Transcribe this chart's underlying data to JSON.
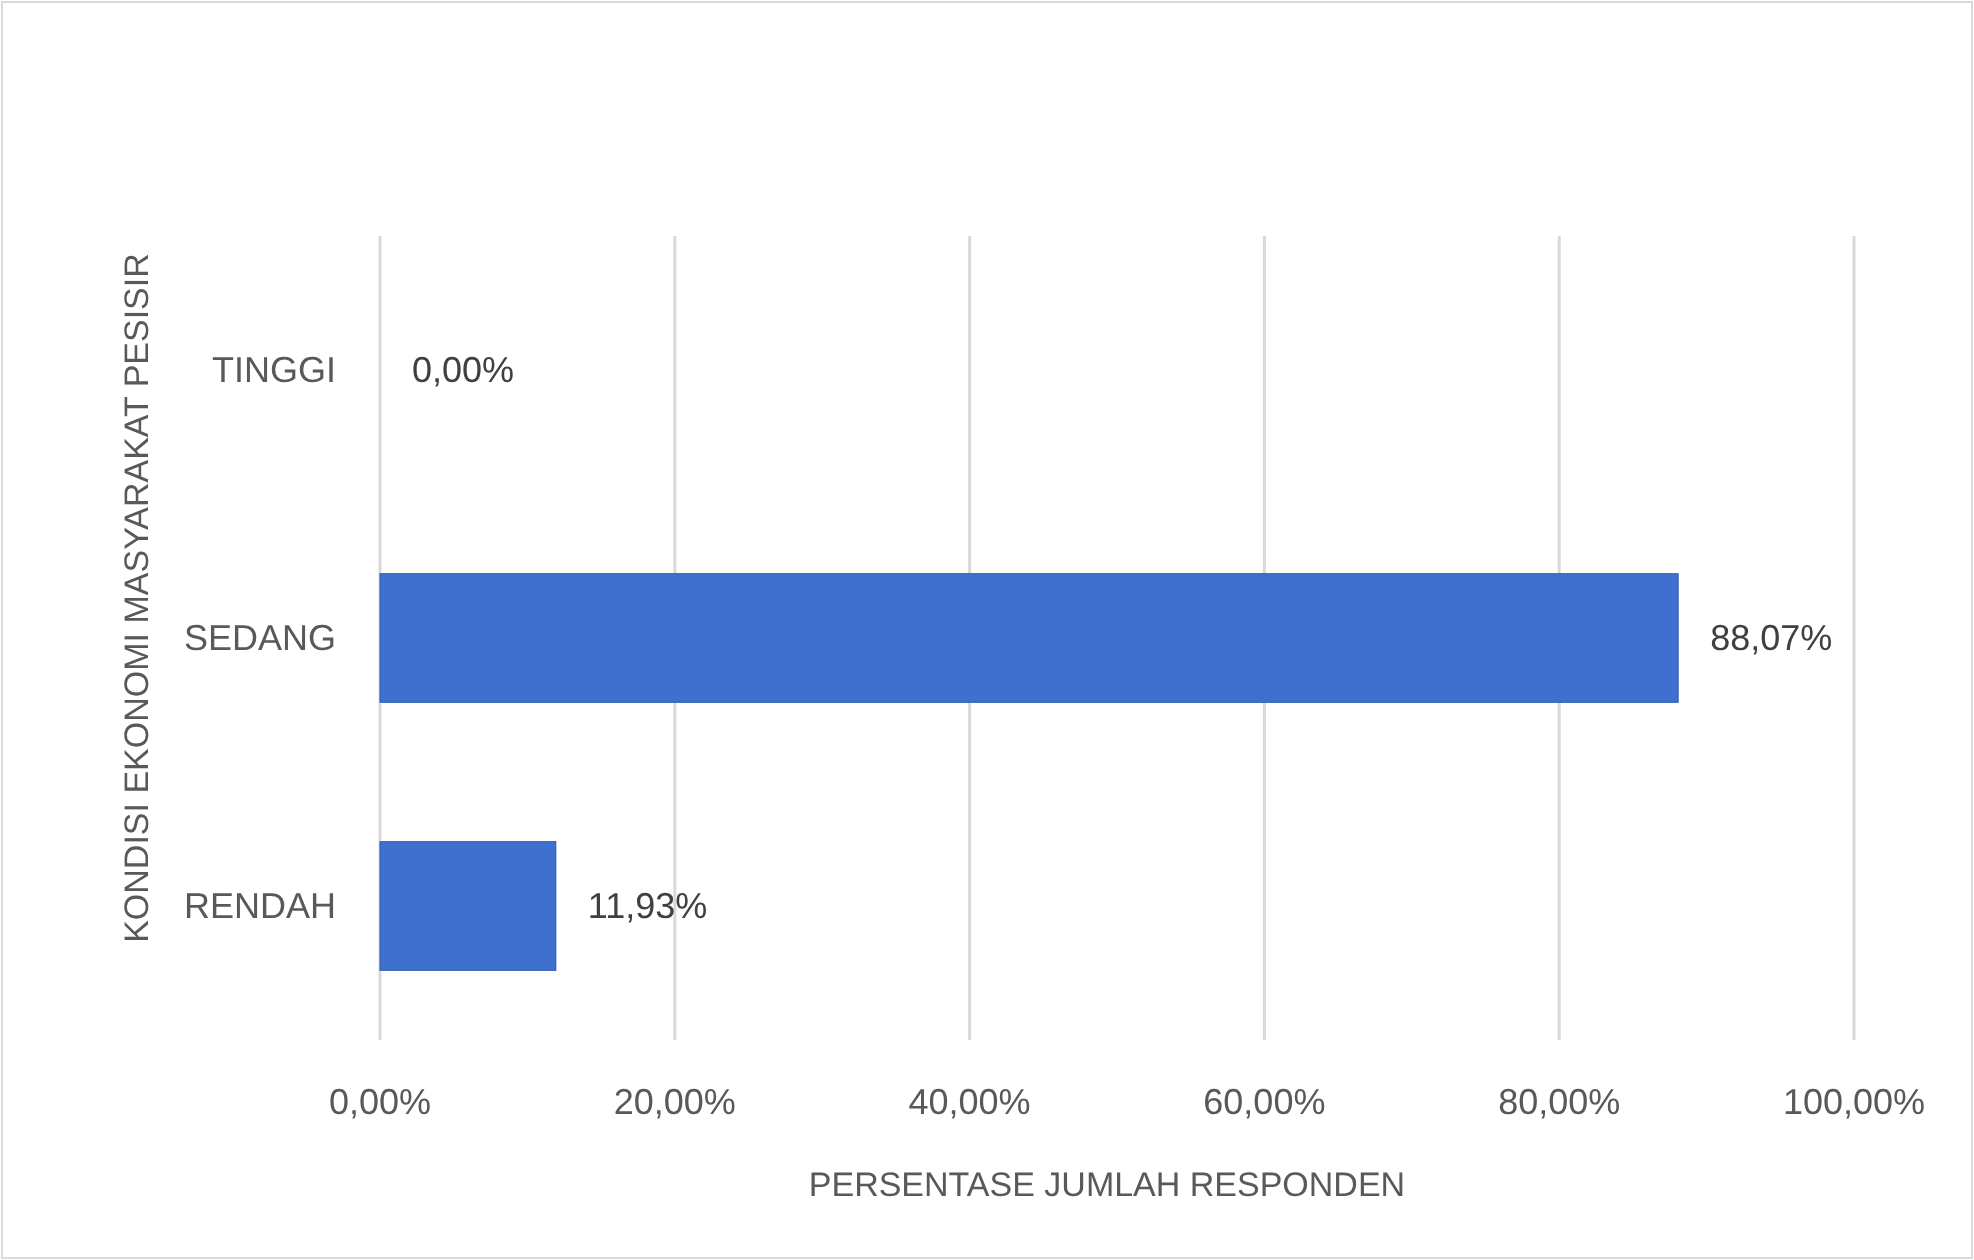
{
  "chart_data": {
    "type": "bar",
    "orientation": "horizontal",
    "xlabel": "PERSENTASE JUMLAH RESPONDEN",
    "ylabel": "KONDISI EKONOMI MASYARAKAT PESISIR",
    "categories": [
      "TINGGI",
      "SEDANG",
      "RENDAH"
    ],
    "values": [
      0,
      88.07,
      11.93
    ],
    "value_labels": [
      "0,00%",
      "88,07%",
      "11,93%"
    ],
    "color": "#3f6fcf",
    "xlim": [
      0,
      100
    ],
    "xticks": [
      {
        "value": 0,
        "label": "0,00%"
      },
      {
        "value": 20,
        "label": "20,00%"
      },
      {
        "value": 40,
        "label": "40,00%"
      },
      {
        "value": 60,
        "label": "60,00%"
      },
      {
        "value": 80,
        "label": "80,00%"
      },
      {
        "value": 100,
        "label": "100,00%"
      }
    ],
    "grid": "x"
  }
}
